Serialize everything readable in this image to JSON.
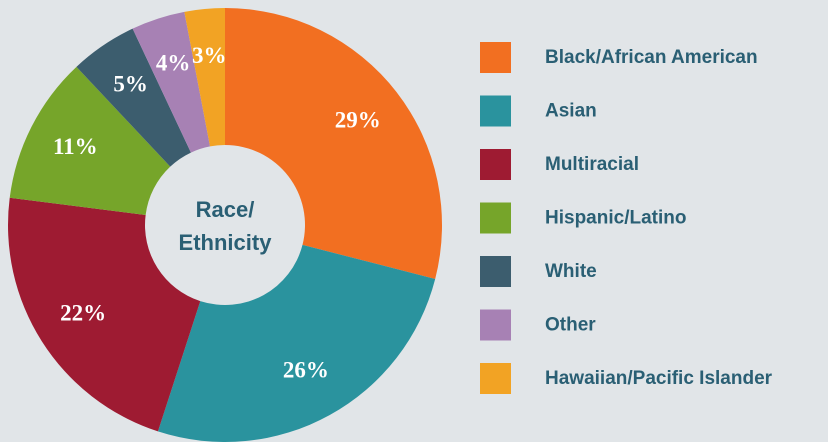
{
  "chart_data": {
    "type": "donut",
    "center_label": [
      "Race/",
      "Ethnicity"
    ],
    "categories": [
      "Black/African American",
      "Asian",
      "Multiracial",
      "Hispanic/Latino",
      "White",
      "Other",
      "Hawaiian/Pacific Islander"
    ],
    "values": [
      29,
      26,
      22,
      11,
      5,
      4,
      3
    ],
    "value_labels": [
      "29%",
      "26%",
      "22%",
      "11%",
      "5%",
      "4%",
      "3%"
    ],
    "colors": [
      "#f26f21",
      "#2a939e",
      "#9e1b32",
      "#76a52a",
      "#3c5d6e",
      "#a781b4",
      "#f2a324"
    ],
    "legend": "right"
  }
}
